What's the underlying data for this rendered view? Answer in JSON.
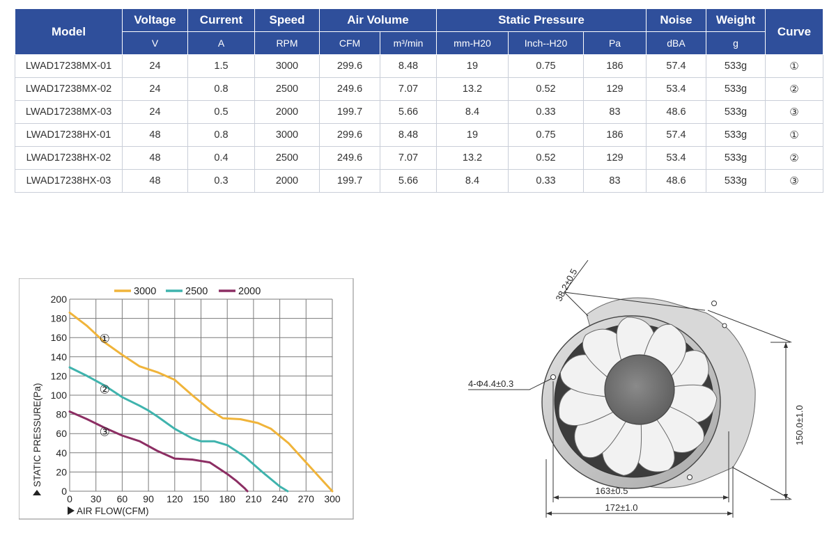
{
  "table": {
    "header_top": {
      "model": "Model",
      "voltage": "Voltage",
      "current": "Current",
      "speed": "Speed",
      "air_volume": "Air Volume",
      "static_pressure": "Static Pressure",
      "noise": "Noise",
      "weight": "Weight",
      "curve": "Curve"
    },
    "units": [
      "V",
      "A",
      "RPM",
      "CFM",
      "m³/min",
      "mm-H20",
      "Inch--H20",
      "Pa",
      "dBA",
      "g"
    ],
    "rows": [
      [
        "LWAD17238MX-01",
        "24",
        "1.5",
        "3000",
        "299.6",
        "8.48",
        "19",
        "0.75",
        "186",
        "57.4",
        "533g",
        "①"
      ],
      [
        "LWAD17238MX-02",
        "24",
        "0.8",
        "2500",
        "249.6",
        "7.07",
        "13.2",
        "0.52",
        "129",
        "53.4",
        "533g",
        "②"
      ],
      [
        "LWAD17238MX-03",
        "24",
        "0.5",
        "2000",
        "199.7",
        "5.66",
        "8.4",
        "0.33",
        "83",
        "48.6",
        "533g",
        "③"
      ],
      [
        "LWAD17238HX-01",
        "48",
        "0.8",
        "3000",
        "299.6",
        "8.48",
        "19",
        "0.75",
        "186",
        "57.4",
        "533g",
        "①"
      ],
      [
        "LWAD17238HX-02",
        "48",
        "0.4",
        "2500",
        "249.6",
        "7.07",
        "13.2",
        "0.52",
        "129",
        "53.4",
        "533g",
        "②"
      ],
      [
        "LWAD17238HX-03",
        "48",
        "0.3",
        "2000",
        "199.7",
        "5.66",
        "8.4",
        "0.33",
        "83",
        "48.6",
        "533g",
        "③"
      ]
    ]
  },
  "chart_data": {
    "type": "line",
    "title": "",
    "xlabel": "AIR FLOW(CFM)",
    "ylabel": "STATIC PRESSURE(Pa)",
    "xlim": [
      0,
      300
    ],
    "ylim": [
      0,
      200
    ],
    "xticks": [
      0,
      30,
      60,
      90,
      120,
      150,
      180,
      210,
      240,
      270,
      300
    ],
    "yticks": [
      0,
      20,
      40,
      60,
      80,
      100,
      120,
      140,
      160,
      180,
      200
    ],
    "grid": true,
    "legend": "top",
    "series": [
      {
        "name": "3000",
        "color": "#f0b43a",
        "marker": "①",
        "marker_at": [
          40,
          159
        ],
        "points": [
          [
            0,
            186
          ],
          [
            20,
            172
          ],
          [
            40,
            155
          ],
          [
            60,
            142
          ],
          [
            80,
            130
          ],
          [
            100,
            124
          ],
          [
            120,
            116
          ],
          [
            140,
            100
          ],
          [
            160,
            85
          ],
          [
            175,
            76
          ],
          [
            195,
            75
          ],
          [
            215,
            71
          ],
          [
            230,
            65
          ],
          [
            250,
            50
          ],
          [
            270,
            30
          ],
          [
            290,
            10
          ],
          [
            300,
            0
          ]
        ]
      },
      {
        "name": "2500",
        "color": "#3fb3ad",
        "marker": "②",
        "marker_at": [
          40,
          106
        ],
        "points": [
          [
            0,
            129
          ],
          [
            20,
            120
          ],
          [
            40,
            110
          ],
          [
            60,
            98
          ],
          [
            80,
            89
          ],
          [
            90,
            84
          ],
          [
            100,
            78
          ],
          [
            120,
            65
          ],
          [
            140,
            55
          ],
          [
            150,
            52
          ],
          [
            165,
            52
          ],
          [
            180,
            48
          ],
          [
            200,
            36
          ],
          [
            220,
            20
          ],
          [
            240,
            5
          ],
          [
            249,
            0
          ]
        ]
      },
      {
        "name": "2000",
        "color": "#8c2e63",
        "marker": "③",
        "marker_at": [
          40,
          62
        ],
        "points": [
          [
            0,
            83
          ],
          [
            20,
            75
          ],
          [
            40,
            66
          ],
          [
            60,
            58
          ],
          [
            80,
            52
          ],
          [
            100,
            42
          ],
          [
            120,
            34
          ],
          [
            140,
            33
          ],
          [
            160,
            30
          ],
          [
            180,
            18
          ],
          [
            190,
            11
          ],
          [
            200,
            3
          ],
          [
            203,
            0
          ]
        ]
      }
    ]
  },
  "drawing": {
    "dim_depth": "38.2±0.5",
    "dim_holes": "4-Φ4.4±0.3",
    "dim_height": "150.0±1.0",
    "dim_hole_span": "163±0.5",
    "dim_width": "172±1.0"
  }
}
